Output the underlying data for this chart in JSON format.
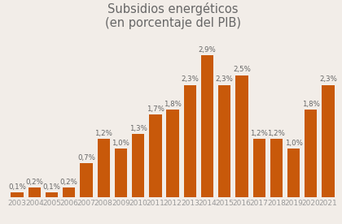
{
  "title_line1": "Subsidios energéticos",
  "title_line2": "(en porcentaje del PIB)",
  "years": [
    2003,
    2004,
    2005,
    2006,
    2007,
    2008,
    2009,
    2010,
    2011,
    2012,
    2013,
    2014,
    2015,
    2016,
    2017,
    2018,
    2019,
    2020,
    2021
  ],
  "values": [
    0.1,
    0.2,
    0.1,
    0.2,
    0.7,
    1.2,
    1.0,
    1.3,
    1.7,
    1.8,
    2.3,
    2.9,
    2.3,
    2.5,
    1.2,
    1.2,
    1.0,
    1.8,
    2.3
  ],
  "labels": [
    "0,1%",
    "0,2%",
    "0,1%",
    "0,2%",
    "0,7%",
    "1,2%",
    "1,0%",
    "1,3%",
    "1,7%",
    "1,8%",
    "2,3%",
    "2,9%",
    "2,3%",
    "2,5%",
    "1,2%",
    "1,2%",
    "1,0%",
    "1,8%",
    "2,3%"
  ],
  "bar_color": "#c8590a",
  "background_color": "#f2ede8",
  "title_color": "#666666",
  "label_color": "#666666",
  "tick_color": "#999999",
  "ylim": [
    0,
    3.35
  ],
  "title_fontsize": 10.5,
  "label_fontsize": 6.2,
  "tick_fontsize": 6.5,
  "bar_width": 0.72
}
